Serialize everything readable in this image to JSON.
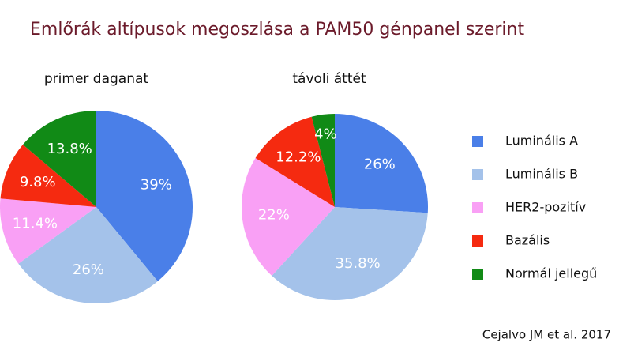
{
  "title": "Emlőrák altípusok megoszlása a PAM50 génpanel szerint",
  "legend": {
    "categories": [
      "Luminális A",
      "Luminális B",
      "HER2-pozitív",
      "Bazális",
      "Normál jellegű"
    ],
    "colors": [
      "#4a7fe8",
      "#a4c2ea",
      "#f9a0f5",
      "#f52a10",
      "#118a16"
    ]
  },
  "source": "Cejalvo JM et al. 2017",
  "chart_data": [
    {
      "type": "pie",
      "title": "primer daganat",
      "values": [
        39,
        26,
        11.4,
        9.8,
        13.8
      ],
      "value_labels": [
        "39%",
        "26%",
        "11.4%",
        "9.8%",
        "13.8%"
      ]
    },
    {
      "type": "pie",
      "title": "távoli áttét",
      "values": [
        26,
        35.8,
        22,
        12.2,
        4
      ],
      "value_labels": [
        "26%",
        "35.8%",
        "22%",
        "12.2%",
        "4%"
      ]
    }
  ]
}
